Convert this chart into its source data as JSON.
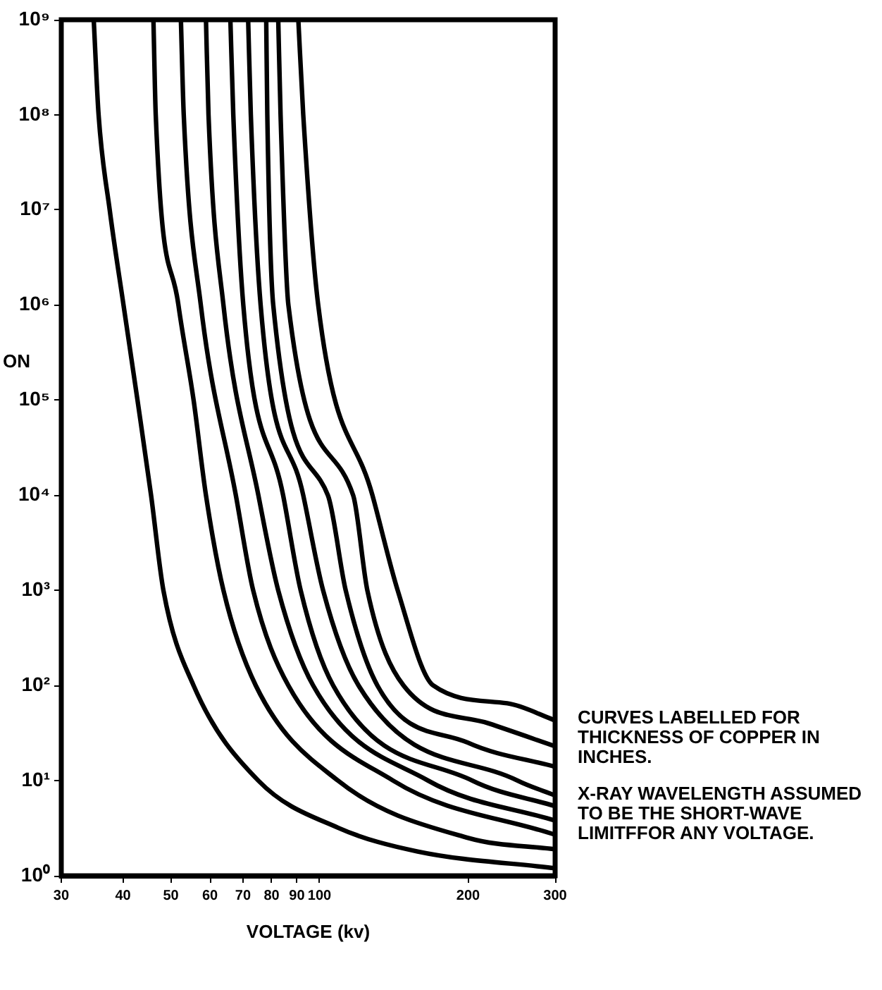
{
  "chart_data": {
    "type": "line",
    "xlabel": "VOLTAGE (kv)",
    "ylabel": "ON",
    "log": "xy",
    "grid": false,
    "legend": false,
    "marker": "none",
    "line_style": "solid",
    "xlim": [
      30,
      300
    ],
    "xticks": [
      30,
      40,
      50,
      60,
      70,
      80,
      90,
      100,
      200,
      300
    ],
    "ylim": [
      1,
      1000000000
    ],
    "yticks": [
      {
        "value": 1,
        "label": "10⁰"
      },
      {
        "value": 10,
        "label": "10¹"
      },
      {
        "value": 100,
        "label": "10²"
      },
      {
        "value": 1000,
        "label": "10³"
      },
      {
        "value": 10000,
        "label": "10⁴"
      },
      {
        "value": 100000,
        "label": "10⁵"
      },
      {
        "value": 1000000,
        "label": "10⁶"
      },
      {
        "value": 10000000,
        "label": "10⁷"
      },
      {
        "value": 100000000,
        "label": "10⁸"
      },
      {
        "value": 1000000000,
        "label": "10⁹"
      }
    ],
    "series": [
      {
        "color": "#000000",
        "x": [
          34.9,
          35.7,
          37.6,
          40.1,
          42.8,
          45.6,
          48.3,
          55.6,
          75.2,
          109,
          158,
          300
        ],
        "values": [
          1000000000,
          100000000,
          10000000,
          1000000,
          100000,
          10000,
          1000,
          100,
          10,
          3.2,
          1.8,
          1.2
        ]
      },
      {
        "color": "#000000",
        "x": [
          46.1,
          46.6,
          51.8,
          55.6,
          58.9,
          63.9,
          74.3,
          109,
          200,
          300
        ],
        "values": [
          1000000000,
          100000000,
          1000000,
          100000,
          10000,
          1000,
          100,
          10,
          2.5,
          1.9
        ]
      },
      {
        "color": "#000000",
        "x": [
          52.4,
          53.1,
          57.5,
          67.7,
          73.4,
          86.5,
          141,
          300
        ],
        "values": [
          1000000000,
          100000000,
          1000000,
          10000,
          1000,
          100,
          10,
          2.7
        ]
      },
      {
        "color": "#000000",
        "x": [
          58.9,
          59.6,
          63.9,
          75.2,
          82.5,
          97.1,
          166,
          300
        ],
        "values": [
          1000000000,
          100000000,
          1000000,
          10000,
          1000,
          100,
          10,
          3.8
        ]
      },
      {
        "color": "#000000",
        "x": [
          66.0,
          66.9,
          70.1,
          84.4,
          91.6,
          106.6,
          204,
          300
        ],
        "values": [
          1000000000,
          100000000,
          1000000,
          10000,
          1000,
          100,
          10,
          5.4
        ]
      },
      {
        "color": "#000000",
        "x": [
          71.7,
          72.6,
          76,
          92.7,
          101.7,
          120,
          252,
          300
        ],
        "values": [
          1000000000,
          100000000,
          1000000,
          10000,
          1000,
          100,
          10,
          7
        ]
      },
      {
        "color": "#000000",
        "x": [
          78,
          78.4,
          80.6,
          104,
          113,
          131,
          200,
          300
        ],
        "values": [
          1000000000,
          100000000,
          1000000,
          10000,
          1000,
          100,
          25,
          14
        ]
      },
      {
        "color": "#000000",
        "x": [
          82.5,
          83.4,
          86.5,
          117,
          125,
          148,
          220,
          300
        ],
        "values": [
          1000000000,
          100000000,
          1000000,
          10000,
          1000,
          100,
          40,
          23
        ]
      },
      {
        "color": "#000000",
        "x": [
          90.6,
          92.7,
          99.4,
          128,
          144,
          170,
          240,
          300
        ],
        "values": [
          1000000000,
          100000000,
          1000000,
          10000,
          1000,
          100,
          65,
          43
        ]
      }
    ],
    "annotations": [
      "CURVES LABELLED FOR THICKNESS OF COPPER IN INCHES.",
      "X-RAY WAVELENGTH ASSUMED TO BE THE SHORT-WAVE LIMITFFOR ANY VOLTAGE."
    ]
  }
}
